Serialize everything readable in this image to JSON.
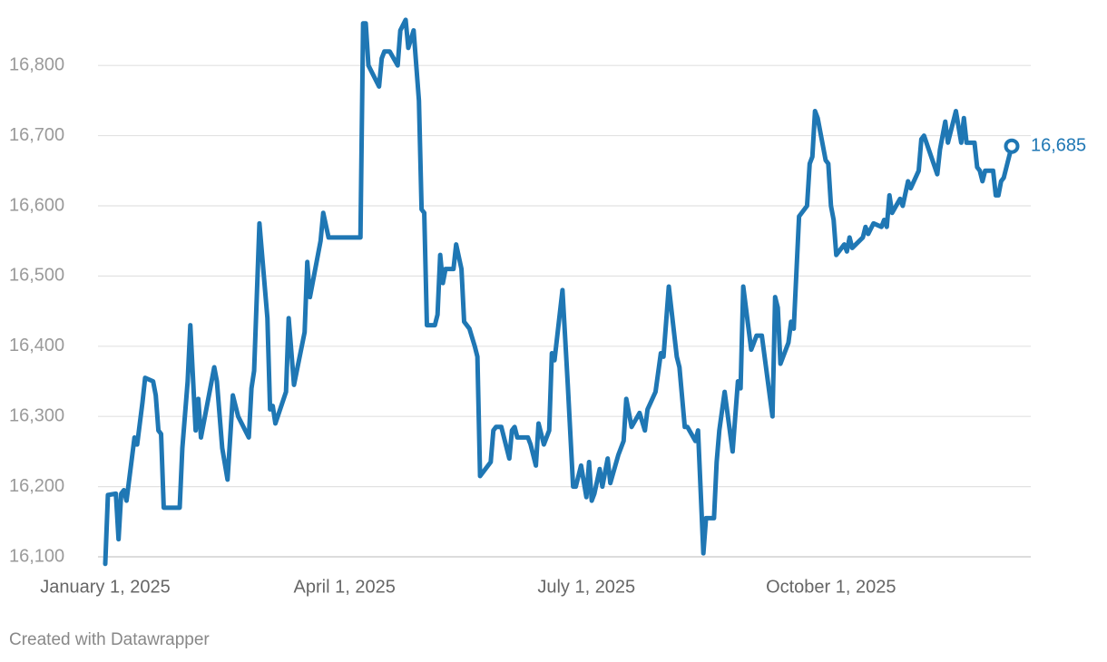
{
  "chart_data": {
    "type": "line",
    "color": "#1f77b4",
    "grid": true,
    "x": [
      "2025-01-01",
      "2025-01-02",
      "2025-01-05",
      "2025-01-06",
      "2025-01-07",
      "2025-01-08",
      "2025-01-09",
      "2025-01-12",
      "2025-01-13",
      "2025-01-15",
      "2025-01-16",
      "2025-01-19",
      "2025-01-20",
      "2025-01-21",
      "2025-01-22",
      "2025-01-23",
      "2025-01-29",
      "2025-01-30",
      "2025-02-01",
      "2025-02-02",
      "2025-02-04",
      "2025-02-05",
      "2025-02-06",
      "2025-02-11",
      "2025-02-12",
      "2025-02-14",
      "2025-02-16",
      "2025-02-18",
      "2025-02-20",
      "2025-02-24",
      "2025-02-25",
      "2025-02-26",
      "2025-02-28",
      "2025-03-03",
      "2025-03-04",
      "2025-03-05",
      "2025-03-06",
      "2025-03-10",
      "2025-03-11",
      "2025-03-13",
      "2025-03-17",
      "2025-03-18",
      "2025-03-19",
      "2025-03-23",
      "2025-03-24",
      "2025-03-26",
      "2025-04-07",
      "2025-04-08",
      "2025-04-09",
      "2025-04-10",
      "2025-04-14",
      "2025-04-15",
      "2025-04-16",
      "2025-04-18",
      "2025-04-21",
      "2025-04-22",
      "2025-04-24",
      "2025-04-25",
      "2025-04-27",
      "2025-04-29",
      "2025-04-30",
      "2025-05-01",
      "2025-05-02",
      "2025-05-05",
      "2025-05-06",
      "2025-05-07",
      "2025-05-08",
      "2025-05-09",
      "2025-05-12",
      "2025-05-13",
      "2025-05-15",
      "2025-05-16",
      "2025-05-18",
      "2025-05-20",
      "2025-05-21",
      "2025-05-22",
      "2025-05-26",
      "2025-05-27",
      "2025-05-28",
      "2025-05-30",
      "2025-06-02",
      "2025-06-03",
      "2025-06-04",
      "2025-06-05",
      "2025-06-09",
      "2025-06-10",
      "2025-06-12",
      "2025-06-13",
      "2025-06-15",
      "2025-06-17",
      "2025-06-18",
      "2025-06-19",
      "2025-06-22",
      "2025-06-24",
      "2025-06-26",
      "2025-06-27",
      "2025-06-29",
      "2025-07-01",
      "2025-07-02",
      "2025-07-03",
      "2025-07-04",
      "2025-07-06",
      "2025-07-07",
      "2025-07-09",
      "2025-07-10",
      "2025-07-13",
      "2025-07-15",
      "2025-07-16",
      "2025-07-18",
      "2025-07-21",
      "2025-07-23",
      "2025-07-24",
      "2025-07-27",
      "2025-07-29",
      "2025-07-30",
      "2025-08-01",
      "2025-08-04",
      "2025-08-05",
      "2025-08-07",
      "2025-08-08",
      "2025-08-11",
      "2025-08-12",
      "2025-08-14",
      "2025-08-15",
      "2025-08-18",
      "2025-08-19",
      "2025-08-20",
      "2025-08-22",
      "2025-08-25",
      "2025-08-27",
      "2025-08-28",
      "2025-08-29",
      "2025-09-01",
      "2025-09-03",
      "2025-09-05",
      "2025-09-09",
      "2025-09-10",
      "2025-09-11",
      "2025-09-12",
      "2025-09-15",
      "2025-09-16",
      "2025-09-17",
      "2025-09-19",
      "2025-09-22",
      "2025-09-23",
      "2025-09-24",
      "2025-09-25",
      "2025-09-26",
      "2025-09-29",
      "2025-09-30",
      "2025-10-01",
      "2025-10-02",
      "2025-10-03",
      "2025-10-06",
      "2025-10-07",
      "2025-10-08",
      "2025-10-09",
      "2025-10-13",
      "2025-10-14",
      "2025-10-15",
      "2025-10-17",
      "2025-10-20",
      "2025-10-21",
      "2025-10-22",
      "2025-10-23",
      "2025-10-24",
      "2025-10-27",
      "2025-10-28",
      "2025-10-30",
      "2025-10-31",
      "2025-11-03",
      "2025-11-04",
      "2025-11-05",
      "2025-11-10",
      "2025-11-11",
      "2025-11-13",
      "2025-11-14",
      "2025-11-17",
      "2025-11-19",
      "2025-11-20",
      "2025-11-21",
      "2025-11-24",
      "2025-11-25",
      "2025-11-26",
      "2025-11-27",
      "2025-11-28",
      "2025-12-01",
      "2025-12-02",
      "2025-12-03",
      "2025-12-04",
      "2025-12-05",
      "2025-12-08"
    ],
    "values": [
      16090,
      16188,
      16190,
      16125,
      16190,
      16195,
      16180,
      16270,
      16260,
      16320,
      16355,
      16350,
      16330,
      16280,
      16275,
      16170,
      16170,
      16255,
      16350,
      16430,
      16280,
      16325,
      16270,
      16370,
      16350,
      16255,
      16210,
      16330,
      16300,
      16270,
      16340,
      16365,
      16575,
      16440,
      16310,
      16315,
      16290,
      16335,
      16440,
      16345,
      16420,
      16520,
      16470,
      16550,
      16590,
      16555,
      16555,
      16860,
      16860,
      16800,
      16770,
      16810,
      16820,
      16820,
      16800,
      16850,
      16865,
      16825,
      16850,
      16750,
      16595,
      16590,
      16430,
      16430,
      16445,
      16530,
      16490,
      16510,
      16510,
      16545,
      16510,
      16435,
      16425,
      16400,
      16385,
      16215,
      16235,
      16280,
      16285,
      16285,
      16240,
      16280,
      16285,
      16270,
      16270,
      16260,
      16230,
      16290,
      16260,
      16280,
      16390,
      16380,
      16480,
      16345,
      16200,
      16200,
      16230,
      16185,
      16235,
      16180,
      16190,
      16225,
      16200,
      16240,
      16205,
      16245,
      16265,
      16325,
      16285,
      16305,
      16280,
      16310,
      16335,
      16390,
      16385,
      16485,
      16385,
      16370,
      16285,
      16285,
      16265,
      16280,
      16105,
      16155,
      16155,
      16235,
      16280,
      16335,
      16250,
      16350,
      16340,
      16485,
      16395,
      16415,
      16415,
      16300,
      16470,
      16455,
      16375,
      16405,
      16435,
      16425,
      16585,
      16600,
      16660,
      16670,
      16735,
      16725,
      16665,
      16660,
      16600,
      16580,
      16530,
      16545,
      16535,
      16555,
      16540,
      16555,
      16570,
      16560,
      16575,
      16570,
      16580,
      16570,
      16615,
      16590,
      16610,
      16600,
      16635,
      16625,
      16650,
      16695,
      16700,
      16645,
      16680,
      16720,
      16690,
      16735,
      16690,
      16725,
      16690,
      16690,
      16655,
      16650,
      16635,
      16650,
      16650,
      16615,
      16615,
      16635,
      16640,
      16685
    ],
    "end_label": "16,685",
    "xlim": [
      "2025-01-01",
      "2025-12-08"
    ],
    "xticks": [
      {
        "value": "2025-01-01",
        "label": "January 1, 2025"
      },
      {
        "value": "2025-04-01",
        "label": "April 1, 2025"
      },
      {
        "value": "2025-07-01",
        "label": "July 1, 2025"
      },
      {
        "value": "2025-10-01",
        "label": "October 1, 2025"
      }
    ],
    "ylim": [
      16100,
      16870
    ],
    "yticks": [
      {
        "value": 16100,
        "label": "16,100"
      },
      {
        "value": 16200,
        "label": "16,200"
      },
      {
        "value": 16300,
        "label": "16,300"
      },
      {
        "value": 16400,
        "label": "16,400"
      },
      {
        "value": 16500,
        "label": "16,500"
      },
      {
        "value": 16600,
        "label": "16,600"
      },
      {
        "value": 16700,
        "label": "16,700"
      },
      {
        "value": 16800,
        "label": "16,800"
      }
    ],
    "source": "Created with Datawrapper"
  }
}
